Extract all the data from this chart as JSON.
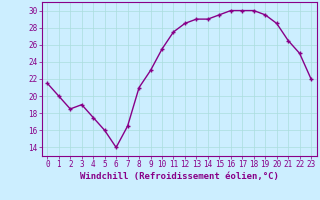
{
  "x": [
    0,
    1,
    2,
    3,
    4,
    5,
    6,
    7,
    8,
    9,
    10,
    11,
    12,
    13,
    14,
    15,
    16,
    17,
    18,
    19,
    20,
    21,
    22,
    23
  ],
  "y": [
    21.5,
    20.0,
    18.5,
    19.0,
    17.5,
    16.0,
    14.0,
    16.5,
    21.0,
    23.0,
    25.5,
    27.5,
    28.5,
    29.0,
    29.0,
    29.5,
    30.0,
    30.0,
    30.0,
    29.5,
    28.5,
    26.5,
    25.0,
    22.0
  ],
  "line_color": "#880088",
  "marker": "+",
  "markersize": 3,
  "markeredgewidth": 1.0,
  "linewidth": 1.0,
  "xlabel": "Windchill (Refroidissement éolien,°C)",
  "xlabel_fontsize": 6.5,
  "xlim": [
    -0.5,
    23.5
  ],
  "ylim": [
    13,
    31
  ],
  "yticks": [
    14,
    16,
    18,
    20,
    22,
    24,
    26,
    28,
    30
  ],
  "xticks": [
    0,
    1,
    2,
    3,
    4,
    5,
    6,
    7,
    8,
    9,
    10,
    11,
    12,
    13,
    14,
    15,
    16,
    17,
    18,
    19,
    20,
    21,
    22,
    23
  ],
  "xtick_labels": [
    "0",
    "1",
    "2",
    "3",
    "4",
    "5",
    "6",
    "7",
    "8",
    "9",
    "10",
    "11",
    "12",
    "13",
    "14",
    "15",
    "16",
    "17",
    "18",
    "19",
    "20",
    "21",
    "22",
    "23"
  ],
  "ytick_labels": [
    "14",
    "16",
    "18",
    "20",
    "22",
    "24",
    "26",
    "28",
    "30"
  ],
  "bg_color": "#cceeff",
  "grid_color": "#aadddd",
  "tick_color": "#880088",
  "tick_fontsize": 5.5,
  "xlabel_color": "#880088",
  "spine_color": "#880088"
}
